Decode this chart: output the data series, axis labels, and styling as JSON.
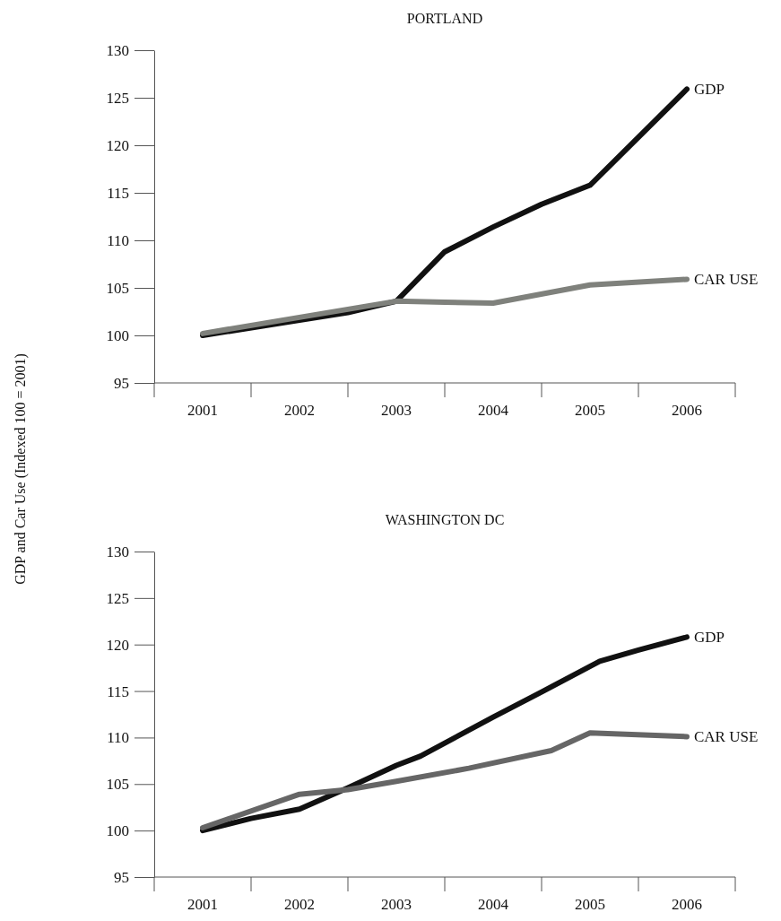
{
  "chart_data": [
    {
      "type": "line",
      "title": "PORTLAND",
      "ylabel": "GDP and Car Use (Indexed 100 = 2001)",
      "xlim": [
        2000.5,
        2006.5
      ],
      "xticks": [
        {
          "value": 2000.5,
          "label": null
        },
        {
          "value": 2001,
          "label": "2001"
        },
        {
          "value": 2001.5,
          "label": null
        },
        {
          "value": 2002,
          "label": "2002"
        },
        {
          "value": 2002.5,
          "label": null
        },
        {
          "value": 2003,
          "label": "2003"
        },
        {
          "value": 2003.5,
          "label": null
        },
        {
          "value": 2004,
          "label": "2004"
        },
        {
          "value": 2004.5,
          "label": null
        },
        {
          "value": 2005,
          "label": "2005"
        },
        {
          "value": 2005.5,
          "label": null
        },
        {
          "value": 2006,
          "label": "2006"
        },
        {
          "value": 2006.5,
          "label": null
        }
      ],
      "ylim": [
        95,
        130
      ],
      "yticks": [
        95,
        100,
        105,
        110,
        115,
        120,
        125,
        130
      ],
      "grid": false,
      "legend": false,
      "marker": "none",
      "line_style": "solid",
      "series": [
        {
          "name": "GDP",
          "color": "#111111",
          "x": [
            2001,
            2002,
            2002.5,
            2003,
            2003.5,
            2004,
            2004.5,
            2005,
            2006
          ],
          "values": [
            100,
            101.6,
            102.4,
            103.6,
            108.8,
            111.4,
            113.8,
            115.8,
            125.9
          ]
        },
        {
          "name": "CAR USE",
          "color": "#7f817c",
          "x": [
            2001,
            2002,
            2003,
            2003.5,
            2004,
            2005,
            2006
          ],
          "values": [
            100.2,
            101.9,
            103.6,
            103.5,
            103.4,
            105.3,
            105.9
          ]
        }
      ]
    },
    {
      "type": "line",
      "title": "WASHINGTON DC",
      "xlim": [
        2000.5,
        2006.5
      ],
      "xticks": [
        {
          "value": 2000.5,
          "label": null
        },
        {
          "value": 2001,
          "label": "2001"
        },
        {
          "value": 2001.5,
          "label": null
        },
        {
          "value": 2002,
          "label": "2002"
        },
        {
          "value": 2002.5,
          "label": null
        },
        {
          "value": 2003,
          "label": "2003"
        },
        {
          "value": 2003.5,
          "label": null
        },
        {
          "value": 2004,
          "label": "2004"
        },
        {
          "value": 2004.5,
          "label": null
        },
        {
          "value": 2005,
          "label": "2005"
        },
        {
          "value": 2005.5,
          "label": null
        },
        {
          "value": 2006,
          "label": "2006"
        },
        {
          "value": 2006.5,
          "label": null
        }
      ],
      "ylim": [
        95,
        130
      ],
      "yticks": [
        95,
        100,
        105,
        110,
        115,
        120,
        125,
        130
      ],
      "grid": false,
      "legend": false,
      "marker": "none",
      "line_style": "solid",
      "series": [
        {
          "name": "GDP",
          "color": "#111111",
          "x": [
            2001,
            2001.5,
            2002,
            2002.5,
            2003,
            2003.25,
            2004,
            2004.5,
            2005.1,
            2005.5,
            2006
          ],
          "values": [
            100,
            101.3,
            102.3,
            104.6,
            107.0,
            108.0,
            112.2,
            114.9,
            118.2,
            119.4,
            120.8
          ]
        },
        {
          "name": "CAR USE",
          "color": "#666666",
          "x": [
            2001,
            2002,
            2002.5,
            2003,
            2003.75,
            2004.6,
            2005,
            2006
          ],
          "values": [
            100.3,
            103.9,
            104.4,
            105.3,
            106.7,
            108.6,
            110.5,
            110.1
          ]
        }
      ]
    }
  ]
}
